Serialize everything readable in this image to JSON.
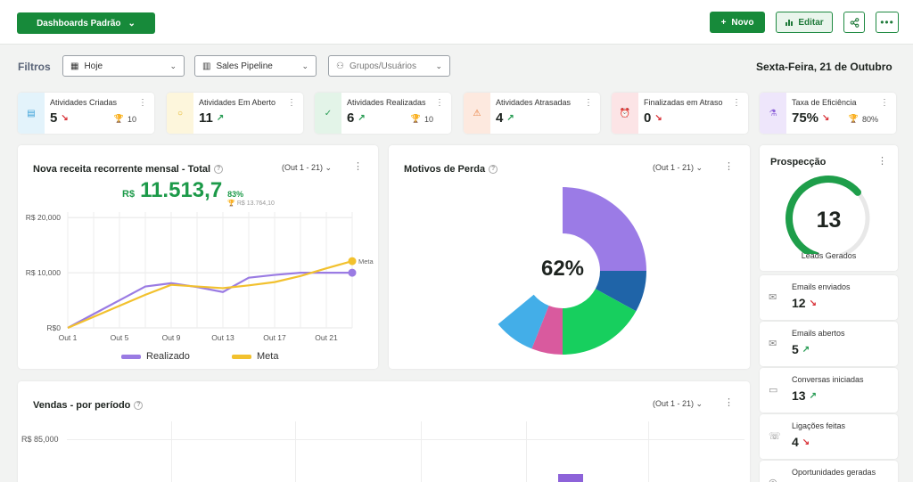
{
  "topbar": {
    "dashboard_button": "Dashboards Padrão",
    "new_button": "Novo",
    "edit_button": "Editar"
  },
  "filters": {
    "label": "Filtros",
    "period": "Hoje",
    "pipeline": "Sales Pipeline",
    "groups_placeholder": "Grupos/Usuários",
    "date": "Sexta-Feira, 21 de Outubro"
  },
  "kpis": [
    {
      "title": "Atividades Criadas",
      "value": "5",
      "trend": "↘",
      "trend_dir": "down",
      "goal": "10",
      "icon": "document-icon",
      "color": "#e3f3fb",
      "icon_color": "#3aa0d8"
    },
    {
      "title": "Atividades Em Aberto",
      "value": "11",
      "trend": "↗",
      "trend_dir": "up",
      "goal": "",
      "icon": "circle-icon",
      "color": "#fdf6dc",
      "icon_color": "#e3b21b"
    },
    {
      "title": "Atividades Realizadas",
      "value": "6",
      "trend": "↗",
      "trend_dir": "up",
      "goal": "10",
      "icon": "check-circle-icon",
      "color": "#e3f4e8",
      "icon_color": "#2a9d56"
    },
    {
      "title": "Atividades Atrasadas",
      "value": "4",
      "trend": "↗",
      "trend_dir": "up",
      "goal": "",
      "icon": "warning-icon",
      "color": "#fde9df",
      "icon_color": "#e6732c"
    },
    {
      "title": "Finalizadas em Atraso",
      "value": "0",
      "trend": "↘",
      "trend_dir": "down",
      "goal": "",
      "icon": "alarm-icon",
      "color": "#fce4e6",
      "icon_color": "#d9343a"
    },
    {
      "title": "Taxa de Eficiência",
      "value": "75%",
      "trend": "↘",
      "trend_dir": "down",
      "goal": "80%",
      "icon": "flask-icon",
      "color": "#eee6fb",
      "icon_color": "#8d63d9"
    }
  ],
  "revenue_card": {
    "title": "Nova receita recorrente mensal - Total",
    "period": "(Out 1 - 21)",
    "currency": "R$",
    "value": "11.513,7",
    "percent": "83%",
    "goal": "R$ 13.764,10"
  },
  "loss_card": {
    "title": "Motivos de Perda",
    "period": "(Out 1 - 21)",
    "center_label": "62%"
  },
  "sales_card": {
    "title": "Vendas - por período",
    "period": "(Out 1 - 21)",
    "y_tick": "R$ 85,000"
  },
  "prospect": {
    "title": "Prospecção",
    "value": "13",
    "label": "Leads Gerados",
    "gauge_fraction": 0.65,
    "items": [
      {
        "label": "Emails enviados",
        "value": "12",
        "trend": "↘",
        "trend_dir": "down",
        "icon": "mail-icon"
      },
      {
        "label": "Emails abertos",
        "value": "5",
        "trend": "↗",
        "trend_dir": "up",
        "icon": "mail-open-icon"
      },
      {
        "label": "Conversas iniciadas",
        "value": "13",
        "trend": "↗",
        "trend_dir": "up",
        "icon": "chat-icon"
      },
      {
        "label": "Ligações feitas",
        "value": "4",
        "trend": "↘",
        "trend_dir": "down",
        "icon": "phone-icon"
      },
      {
        "label": "Oportunidades geradas",
        "value": "",
        "trend": "",
        "trend_dir": "",
        "icon": "target-icon"
      }
    ]
  },
  "chart_data": [
    {
      "type": "line",
      "title": "Nova receita recorrente mensal - Total",
      "x": [
        "Out 1",
        "Out 3",
        "Out 5",
        "Out 7",
        "Out 9",
        "Out 11",
        "Out 13",
        "Out 15",
        "Out 17",
        "Out 19",
        "Out 21",
        "Out 22"
      ],
      "x_ticks": [
        "Out 1",
        "Out 5",
        "Out 9",
        "Out 13",
        "Out 17",
        "Out 21"
      ],
      "y_ticks": [
        "R$0",
        "R$ 10,000",
        "R$ 20,000"
      ],
      "ylim": [
        0,
        21000
      ],
      "series": [
        {
          "name": "Realizado",
          "color": "#9a7be3",
          "values": [
            0,
            2500,
            5000,
            7500,
            8100,
            7400,
            6500,
            9100,
            9600,
            10000,
            10000,
            10000
          ]
        },
        {
          "name": "Meta",
          "color": "#f2c12e",
          "values": [
            0,
            2000,
            4000,
            6000,
            7800,
            7500,
            7200,
            7700,
            8300,
            9400,
            10800,
            12100
          ]
        }
      ],
      "end_label": "Meta",
      "grid": true,
      "legend": "bottom"
    },
    {
      "type": "pie",
      "title": "Motivos de Perda",
      "center_label": "62%",
      "slices": [
        {
          "value": 25,
          "color": "#9b7be6"
        },
        {
          "value": 8,
          "color": "#1f64a8"
        },
        {
          "value": 17,
          "color": "#17cf5e"
        },
        {
          "value": 6,
          "color": "#d95a9e"
        },
        {
          "value": 8,
          "color": "#43aee8"
        }
      ]
    },
    {
      "type": "bar",
      "title": "Vendas - por período",
      "y_ticks": [
        "R$ 85,000"
      ],
      "bar_color": "#8d63d9"
    }
  ]
}
